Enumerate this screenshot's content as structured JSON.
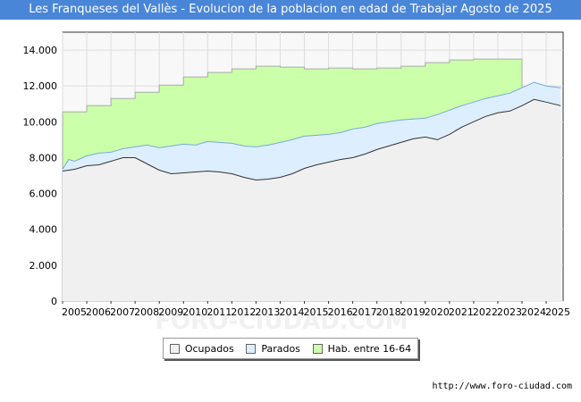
{
  "title": "Les Franqueses del Vallès - Evolucion de la poblacion en edad de Trabajar Agosto de 2025",
  "source": "http://www.foro-ciudad.com",
  "watermark": "FORO-CIUDAD.COM",
  "legend": [
    {
      "label": "Ocupados",
      "color": "#f0f0f0"
    },
    {
      "label": "Parados",
      "color": "#ddeeff"
    },
    {
      "label": "Hab. entre 16-64",
      "color": "#ccffaa"
    }
  ],
  "colors": {
    "title_bg": "#4a86d8",
    "hab_line": "#aaaaaa",
    "parados_line": "#77aadd",
    "ocupados_line": "#333333"
  },
  "chart_data": {
    "type": "area",
    "title": "Les Franqueses del Vallès - Evolucion de la poblacion en edad de Trabajar Agosto de 2025",
    "xlabel": "",
    "ylabel": "",
    "xlim": [
      2005,
      2025.7
    ],
    "ylim": [
      0,
      15000
    ],
    "x_ticks": [
      "2005",
      "2006",
      "2007",
      "2008",
      "2009",
      "2010",
      "2011",
      "2012",
      "2013",
      "2014",
      "2015",
      "2016",
      "2017",
      "2018",
      "2019",
      "2020",
      "2021",
      "2022",
      "2023",
      "2024",
      "2025"
    ],
    "y_ticks": [
      {
        "value": 0,
        "label": "0"
      },
      {
        "value": 2000,
        "label": "2.000"
      },
      {
        "value": 4000,
        "label": "4.000"
      },
      {
        "value": 6000,
        "label": "6.000"
      },
      {
        "value": 8000,
        "label": "8.000"
      },
      {
        "value": 10000,
        "label": "10.000"
      },
      {
        "value": 12000,
        "label": "12.000"
      },
      {
        "value": 14000,
        "label": "14.000"
      }
    ],
    "grid": true,
    "legend_position": "bottom",
    "series": [
      {
        "name": "Hab. entre 16-64",
        "kind": "annual_step",
        "years": [
          2005,
          2006,
          2007,
          2008,
          2009,
          2010,
          2011,
          2012,
          2013,
          2014,
          2015,
          2016,
          2017,
          2018,
          2019,
          2020,
          2021,
          2022,
          2023
        ],
        "values": [
          10550,
          10900,
          11300,
          11650,
          12050,
          12500,
          12750,
          12950,
          13100,
          13050,
          12950,
          13000,
          12950,
          13000,
          13100,
          13300,
          13450,
          13500,
          13500
        ],
        "end": 2024.0
      },
      {
        "name": "Parados",
        "x": [
          2005.0,
          2005.25,
          2005.5,
          2006.0,
          2006.5,
          2007.0,
          2007.5,
          2008.0,
          2008.5,
          2009.0,
          2009.5,
          2010.0,
          2010.5,
          2011.0,
          2011.5,
          2012.0,
          2012.5,
          2013.0,
          2013.5,
          2014.0,
          2014.5,
          2015.0,
          2015.5,
          2016.0,
          2016.5,
          2017.0,
          2017.5,
          2018.0,
          2018.5,
          2019.0,
          2019.5,
          2020.0,
          2020.5,
          2021.0,
          2021.5,
          2022.0,
          2022.5,
          2023.0,
          2023.5,
          2024.0,
          2024.5,
          2025.0,
          2025.6
        ],
        "values": [
          7350,
          7900,
          7800,
          8100,
          8250,
          8300,
          8500,
          8600,
          8700,
          8550,
          8650,
          8750,
          8700,
          8900,
          8850,
          8800,
          8650,
          8600,
          8700,
          8850,
          9000,
          9200,
          9250,
          9300,
          9400,
          9600,
          9700,
          9900,
          10000,
          10100,
          10150,
          10200,
          10400,
          10650,
          10900,
          11100,
          11300,
          11450,
          11600,
          11900,
          12200,
          12000,
          11900
        ]
      },
      {
        "name": "Ocupados",
        "x": [
          2005.0,
          2005.5,
          2006.0,
          2006.5,
          2007.0,
          2007.5,
          2008.0,
          2008.5,
          2009.0,
          2009.5,
          2010.0,
          2010.5,
          2011.0,
          2011.5,
          2012.0,
          2012.5,
          2013.0,
          2013.5,
          2014.0,
          2014.5,
          2015.0,
          2015.5,
          2016.0,
          2016.5,
          2017.0,
          2017.5,
          2018.0,
          2018.5,
          2019.0,
          2019.5,
          2020.0,
          2020.5,
          2021.0,
          2021.5,
          2022.0,
          2022.5,
          2023.0,
          2023.5,
          2024.0,
          2024.5,
          2025.0,
          2025.6
        ],
        "values": [
          7250,
          7350,
          7550,
          7600,
          7800,
          8000,
          8000,
          7650,
          7300,
          7100,
          7150,
          7200,
          7250,
          7200,
          7100,
          6900,
          6750,
          6800,
          6900,
          7100,
          7400,
          7600,
          7750,
          7900,
          8000,
          8200,
          8450,
          8650,
          8850,
          9050,
          9150,
          9000,
          9300,
          9700,
          10000,
          10300,
          10500,
          10600,
          10900,
          11250,
          11100,
          10900
        ]
      }
    ]
  }
}
